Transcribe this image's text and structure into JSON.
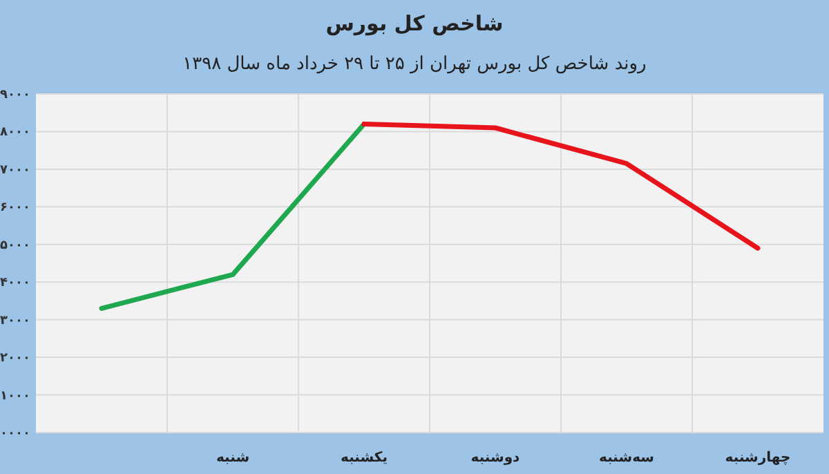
{
  "chart_data": {
    "type": "line",
    "title": "شاخص کل بورس",
    "subtitle": "روند شاخص کل بورس تهران از ۲۵ تا ۲۹ خرداد ماه سال ۱۳۹۸",
    "categories": [
      null,
      "شنبه",
      "یکشنبه",
      "دوشنبه",
      "سه‌شنبه",
      "چهارشنبه"
    ],
    "series": [
      {
        "color": "#1fa84f",
        "values": [
          3300,
          4200,
          8200,
          null,
          null,
          null
        ]
      },
      {
        "color": "#e8141b",
        "values": [
          null,
          null,
          8200,
          8100,
          7150,
          4900
        ]
      }
    ],
    "ylim": [
      0,
      9000
    ],
    "yticks": [
      {
        "value": 0,
        "label": "۰۰۰۰"
      },
      {
        "value": 1000,
        "label": "۱۰۰۰"
      },
      {
        "value": 2000,
        "label": "۲۰۰۰"
      },
      {
        "value": 3000,
        "label": "۳۰۰۰"
      },
      {
        "value": 4000,
        "label": "۴۰۰۰"
      },
      {
        "value": 5000,
        "label": "۵۰۰۰"
      },
      {
        "value": 6000,
        "label": "۶۰۰۰"
      },
      {
        "value": 7000,
        "label": "۷۰۰۰"
      },
      {
        "value": 8000,
        "label": "۸۰۰۰"
      },
      {
        "value": 9000,
        "label": "۹۰۰۰"
      }
    ],
    "grid": true,
    "marker": "none",
    "line_style": "solid"
  }
}
